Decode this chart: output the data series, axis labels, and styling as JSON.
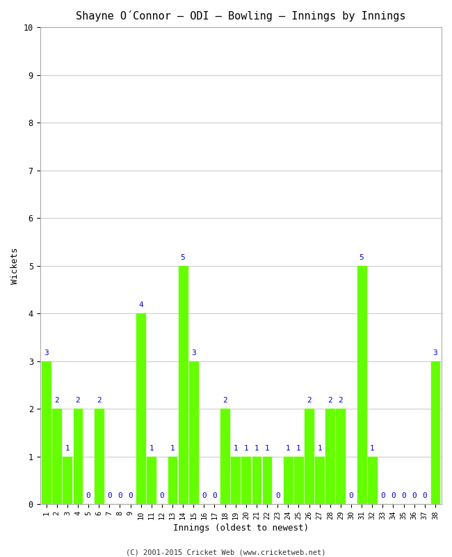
{
  "title": "Shayne O´Connor – ODI – Bowling – Innings by Innings",
  "xlabel": "Innings (oldest to newest)",
  "ylabel": "Wickets",
  "innings": [
    1,
    2,
    3,
    4,
    5,
    6,
    7,
    8,
    9,
    10,
    11,
    12,
    13,
    14,
    15,
    16,
    17,
    18,
    19,
    20,
    21,
    22,
    23,
    24,
    25,
    26,
    27,
    28,
    29,
    30,
    31,
    32,
    33,
    34,
    35,
    36,
    37,
    38
  ],
  "wickets": [
    3,
    2,
    1,
    2,
    0,
    2,
    0,
    0,
    0,
    4,
    1,
    0,
    1,
    5,
    3,
    0,
    0,
    2,
    1,
    1,
    1,
    1,
    0,
    1,
    1,
    2,
    1,
    2,
    2,
    0,
    5,
    1,
    0,
    0,
    0,
    0,
    0,
    3
  ],
  "bar_color": "#66ff00",
  "label_color": "#0000cc",
  "bg_color": "#ffffff",
  "plot_bg_color": "#ffffff",
  "grid_color": "#cccccc",
  "ylim": [
    0,
    10
  ],
  "yticks": [
    0,
    1,
    2,
    3,
    4,
    5,
    6,
    7,
    8,
    9,
    10
  ],
  "footer": "(C) 2001-2015 Cricket Web (www.cricketweb.net)",
  "title_fontsize": 11,
  "label_fontsize": 8,
  "tick_fontsize": 7.5,
  "footer_fontsize": 7.5,
  "fig_width": 6.5,
  "fig_height": 8.0
}
